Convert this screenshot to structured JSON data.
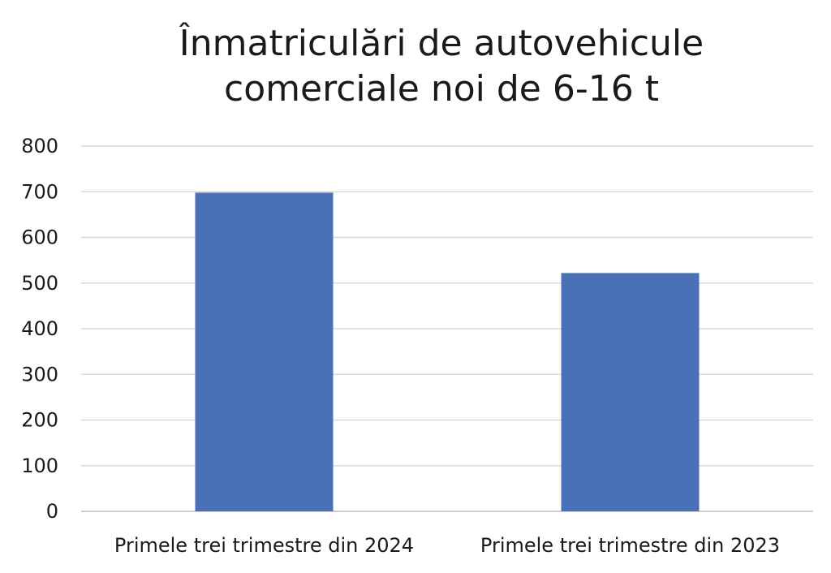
{
  "chart_data": {
    "type": "bar",
    "title_lines": [
      "Înmatriculări de autovehicule",
      "comerciale noi de  6-16 t"
    ],
    "categories": [
      "Primele trei trimestre din 2024",
      "Primele trei trimestre din 2023"
    ],
    "values": [
      698,
      522
    ],
    "ylim": [
      0,
      800
    ],
    "yticks": [
      0,
      100,
      200,
      300,
      400,
      500,
      600,
      700,
      800
    ],
    "xlabel": "",
    "ylabel": "",
    "grid": true,
    "legend": "none",
    "bar_color": "#4a70b8"
  }
}
